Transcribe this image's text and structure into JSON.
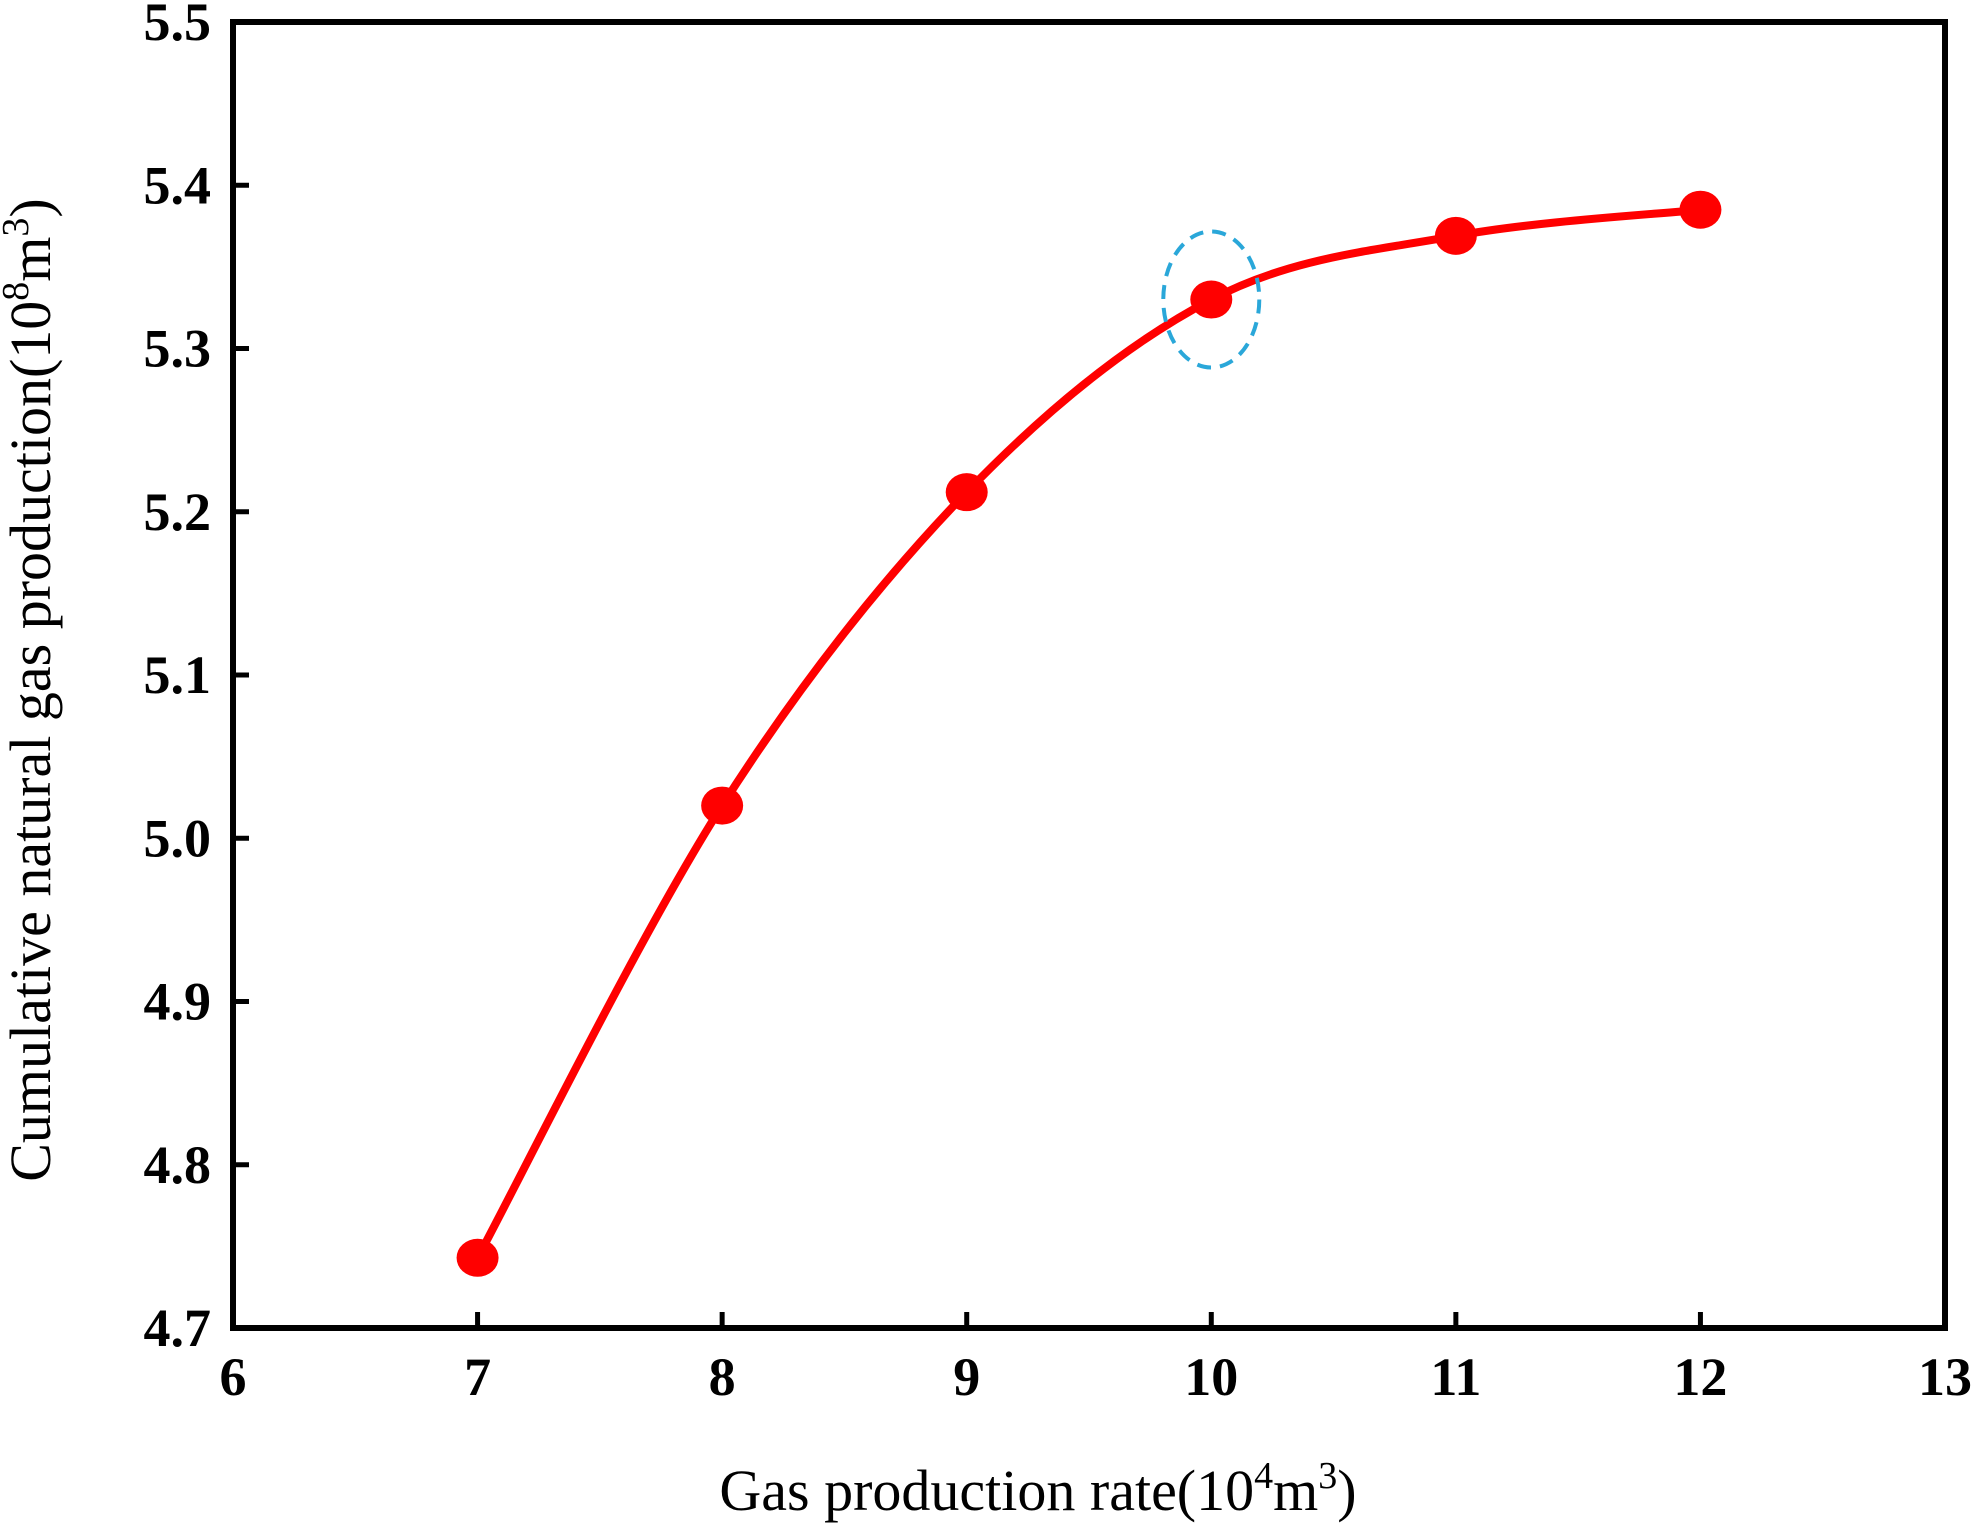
{
  "chart_data": {
    "type": "line",
    "x": [
      7,
      8,
      9,
      10,
      11,
      12
    ],
    "series": [
      {
        "values": [
          4.743,
          5.02,
          5.212,
          5.33,
          5.369,
          5.385
        ],
        "color": "#ff0000"
      }
    ],
    "xlabel": {
      "prefix": "Gas production rate(10",
      "sup1": "4",
      "mid": "m",
      "sup2": "3",
      "suffix": ")"
    },
    "ylabel": {
      "prefix": "Cumulative natural gas production(10",
      "sup1": "8",
      "mid": "m",
      "sup2": "3",
      "suffix": ")"
    },
    "xlim": [
      6,
      13
    ],
    "ylim": [
      4.7,
      5.5
    ],
    "xticks": [
      "6",
      "7",
      "8",
      "9",
      "10",
      "11",
      "12",
      "13"
    ],
    "yticks": [
      "4.7",
      "4.8",
      "4.9",
      "5.0",
      "5.1",
      "5.2",
      "5.3",
      "5.4",
      "5.5"
    ],
    "grid": false,
    "highlight": {
      "x": 10,
      "y": 5.33,
      "style": "dashed ellipse",
      "color": "#2aa7d9"
    }
  }
}
